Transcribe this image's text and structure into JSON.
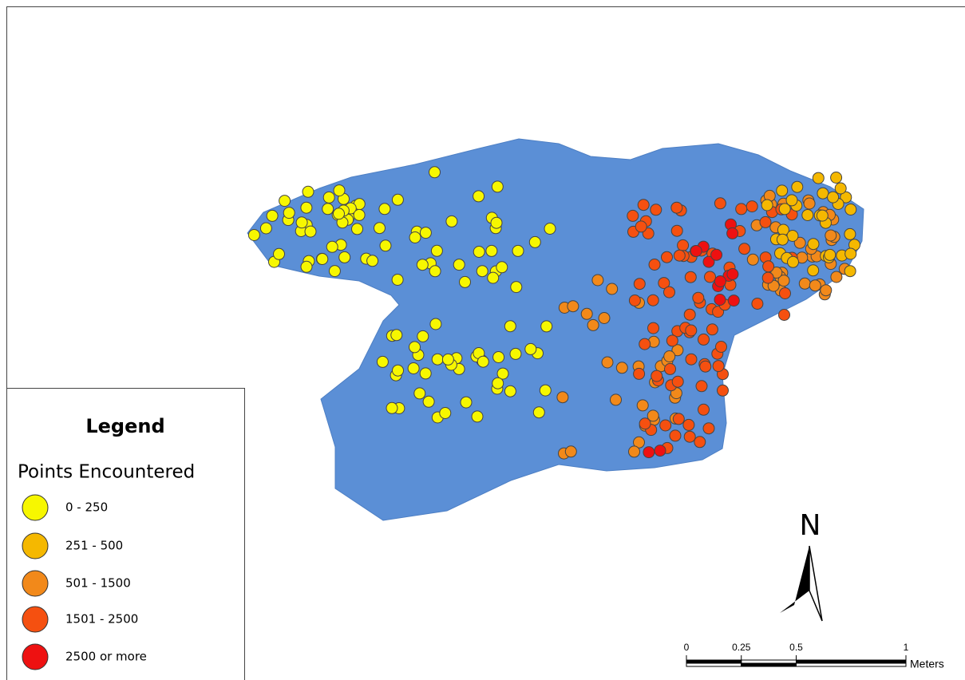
{
  "legend": {
    "title": "Legend",
    "subtitle": "Points Encountered",
    "classes": [
      {
        "label": "0 - 250",
        "color": "#f7f700"
      },
      {
        "label": "251 - 500",
        "color": "#f5b800"
      },
      {
        "label": "501 - 1500",
        "color": "#f2891a"
      },
      {
        "label": "1501 - 2500",
        "color": "#f55010"
      },
      {
        "label": "2500 or more",
        "color": "#ee1111"
      }
    ]
  },
  "north_arrow": {
    "label": "N"
  },
  "scale_bar": {
    "ticks": [
      0,
      0.25,
      0.5,
      1
    ],
    "unit": "Meters"
  }
}
